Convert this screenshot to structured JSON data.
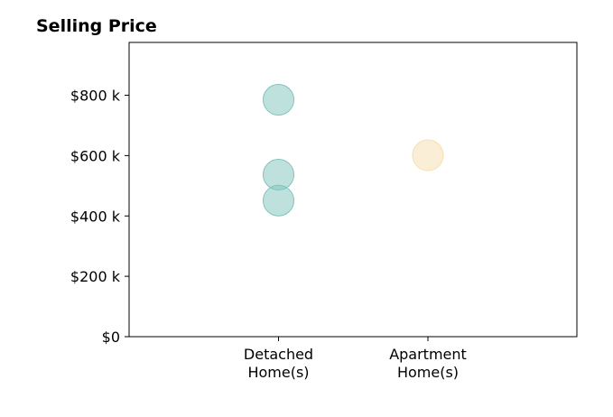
{
  "chart_data": {
    "type": "scatter",
    "title": "Selling Price",
    "xlabel": "",
    "ylabel": "",
    "categories": [
      [
        "Detached",
        "Home(s)"
      ],
      [
        "Apartment",
        "Home(s)"
      ]
    ],
    "ylim": [
      0,
      975000
    ],
    "y_ticks": [
      {
        "value": 0,
        "label": "$0"
      },
      {
        "value": 200000,
        "label": "$200 k"
      },
      {
        "value": 400000,
        "label": "$400 k"
      },
      {
        "value": 600000,
        "label": "$600 k"
      },
      {
        "value": 800000,
        "label": "$800 k"
      }
    ],
    "grid": false,
    "series": [
      {
        "category": "Detached Home(s)",
        "color": "#7fc4bb",
        "points": [
          {
            "x": "Detached Home(s)",
            "y": 785000
          },
          {
            "x": "Detached Home(s)",
            "y": 537000
          },
          {
            "x": "Detached Home(s)",
            "y": 451000
          }
        ]
      },
      {
        "category": "Apartment Home(s)",
        "color": "#f5dfae",
        "points": [
          {
            "x": "Apartment Home(s)",
            "y": 601000
          }
        ]
      }
    ]
  }
}
